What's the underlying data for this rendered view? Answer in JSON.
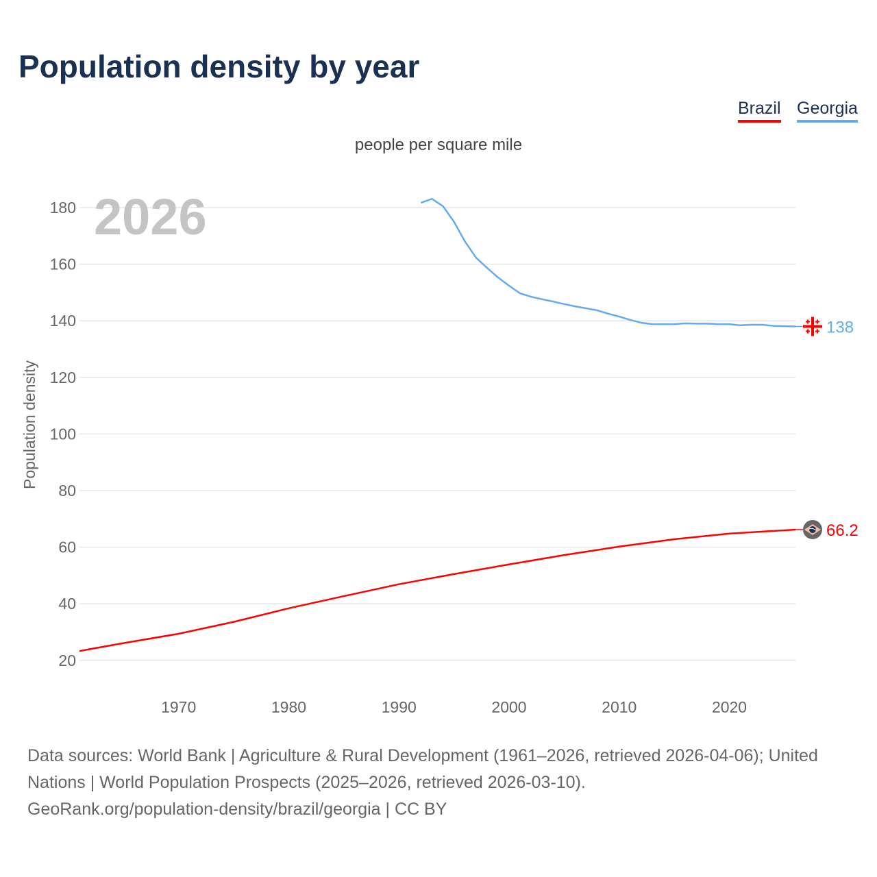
{
  "title": "Population density by year",
  "subtitle": "people per square mile",
  "year_watermark": "2026",
  "legend": [
    {
      "name": "Brazil",
      "color": "#ff0000"
    },
    {
      "name": "Georgia",
      "color": "#66aaee"
    }
  ],
  "footer": {
    "line1": "Data sources: World Bank | Agriculture & Rural Development (1961–2026, retrieved 2026-04-06); United Nations | World Population Prospects (2025–2026, retrieved 2026-03-10).",
    "line2": "GeoRank.org/population-density/brazil/georgia | CC BY"
  },
  "chart_data": {
    "type": "line",
    "title": "Population density by year",
    "ylabel": "Population density",
    "xlabel": "",
    "xlim": [
      1961,
      2026
    ],
    "ylim": [
      10,
      190
    ],
    "yticks": [
      20,
      40,
      60,
      80,
      100,
      120,
      140,
      160,
      180
    ],
    "xticks": [
      1970,
      1980,
      1990,
      2000,
      2010,
      2020
    ],
    "grid": true,
    "legend_position": "top-right",
    "series": [
      {
        "name": "Brazil",
        "color": "#ff0000",
        "end_label": "66.2",
        "flag_icon": "brazil-flag-icon",
        "x": [
          1961,
          1965,
          1970,
          1975,
          1980,
          1985,
          1990,
          1995,
          2000,
          2005,
          2010,
          2015,
          2020,
          2026
        ],
        "y": [
          23.3,
          26.1,
          29.4,
          33.6,
          38.4,
          42.7,
          46.9,
          50.5,
          53.9,
          57.2,
          60.2,
          62.8,
          64.8,
          66.2
        ]
      },
      {
        "name": "Georgia",
        "color": "#66aaee",
        "end_label": "138",
        "flag_icon": "georgia-flag-icon",
        "x": [
          1992,
          1993,
          1994,
          1995,
          1996,
          1997,
          1998,
          1999,
          2000,
          2001,
          2002,
          2003,
          2004,
          2005,
          2006,
          2007,
          2008,
          2009,
          2010,
          2011,
          2012,
          2013,
          2014,
          2015,
          2016,
          2017,
          2018,
          2019,
          2020,
          2021,
          2022,
          2023,
          2024,
          2025,
          2026
        ],
        "y": [
          181.7,
          183.1,
          180.5,
          175,
          168,
          162.3,
          158.7,
          155.3,
          152.4,
          149.7,
          148.5,
          147.6,
          146.8,
          145.9,
          145.1,
          144.4,
          143.7,
          142.5,
          141.5,
          140.3,
          139.3,
          138.8,
          138.8,
          138.8,
          139.1,
          139,
          139,
          138.8,
          138.8,
          138.4,
          138.6,
          138.6,
          138.2,
          138.1,
          138
        ]
      }
    ]
  }
}
